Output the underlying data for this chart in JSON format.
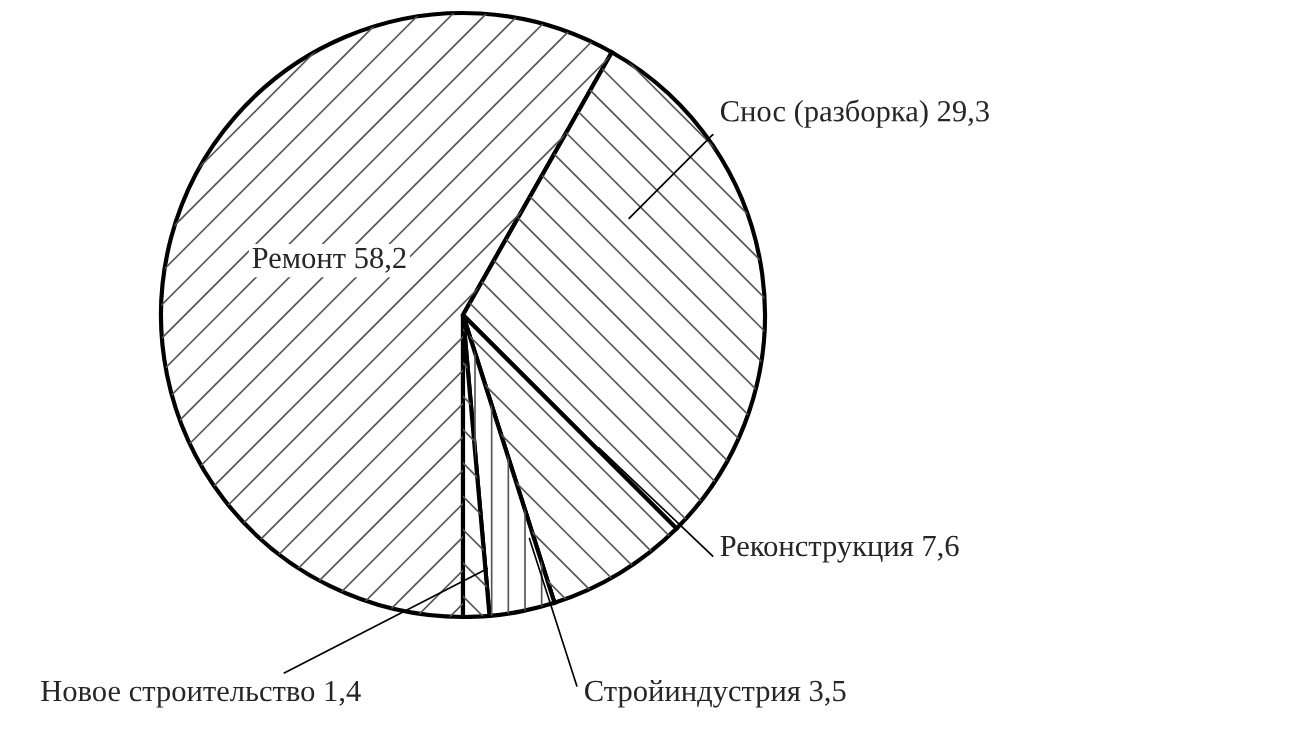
{
  "chart_data": {
    "type": "pie",
    "categories": [
      "Ремонт",
      "Снос (разборка)",
      "Реконструкция",
      "Стройиндустрия",
      "Новое строительство"
    ],
    "values": [
      58.2,
      29.3,
      7.6,
      3.5,
      1.4
    ],
    "value_labels": [
      "58,2",
      "29,3",
      "7,6",
      "3,5",
      "1,4"
    ],
    "colors": [
      "#ffffff",
      "#ffffff",
      "#ffffff",
      "#ffffff",
      "#ffffff"
    ]
  }
}
